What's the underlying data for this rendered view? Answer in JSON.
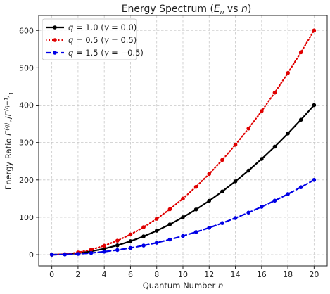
{
  "chart_data": {
    "type": "line",
    "title": "Energy Spectrum (E_n vs n)",
    "xlabel": "Quantum Number n",
    "ylabel": "Energy Ratio E_n^(q)/E_1^(q=1)",
    "xlim": [
      -1,
      21
    ],
    "ylim": [
      -30,
      640
    ],
    "xticks": [
      0,
      2,
      4,
      6,
      8,
      10,
      12,
      14,
      16,
      18,
      20
    ],
    "yticks": [
      0,
      100,
      200,
      300,
      400,
      500,
      600
    ],
    "grid": true,
    "legend_position": "top-left",
    "x": [
      0,
      1,
      2,
      3,
      4,
      5,
      6,
      7,
      8,
      9,
      10,
      11,
      12,
      13,
      14,
      15,
      16,
      17,
      18,
      19,
      20
    ],
    "series": [
      {
        "name": "q = 1.0 (γ = 0.0)",
        "q": "q = 1.0",
        "gamma": "(γ = 0.0)",
        "color": "#000000",
        "style": "solid",
        "values": [
          0,
          1,
          4,
          9,
          16,
          25,
          36,
          49,
          64,
          81,
          100,
          121,
          144,
          169,
          196,
          225,
          256,
          289,
          324,
          361,
          400
        ]
      },
      {
        "name": "q = 0.5 (γ = 0.5)",
        "q": "q = 0.5",
        "gamma": "(γ = 0.5)",
        "color": "#e00000",
        "style": "dotted",
        "values": [
          0,
          1.5,
          6,
          13.5,
          24,
          37.5,
          54,
          73.5,
          96,
          121.5,
          150,
          181.5,
          216,
          253.5,
          294,
          337.5,
          384,
          433.5,
          486,
          541.5,
          600
        ]
      },
      {
        "name": "q = 1.5 (γ = −0.5)",
        "q": "q = 1.5",
        "gamma": "(γ = −0.5)",
        "color": "#0000e6",
        "style": "dashed",
        "values": [
          0,
          0.5,
          2,
          4.5,
          8,
          12.5,
          18,
          24.5,
          32,
          40.5,
          50,
          60.5,
          72,
          84.5,
          98,
          112.5,
          128,
          144.5,
          162,
          180.5,
          200
        ]
      }
    ]
  }
}
